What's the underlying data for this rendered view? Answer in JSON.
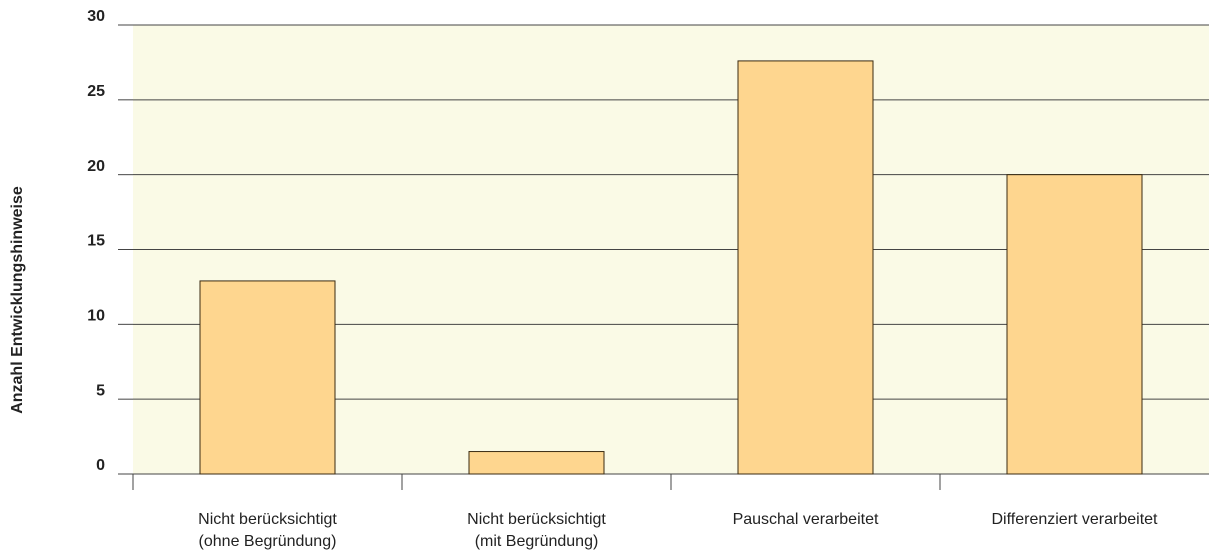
{
  "chart_data": {
    "type": "bar",
    "y_axis_label": "Anzahl Entwicklungshinweise",
    "categories": [
      [
        "Nicht berücksichtigt",
        "(ohne Begründung)"
      ],
      [
        "Nicht berücksichtigt",
        "(mit Begründung)"
      ],
      [
        "Pauschal verarbeitet"
      ],
      [
        "Differenziert verarbeitet"
      ]
    ],
    "values": [
      12.9,
      1.5,
      27.6,
      20
    ],
    "color": "#fed68f",
    "ylim": [
      0,
      30
    ],
    "yticks": [
      0,
      5,
      10,
      15,
      20,
      25,
      30
    ],
    "grid": true
  }
}
